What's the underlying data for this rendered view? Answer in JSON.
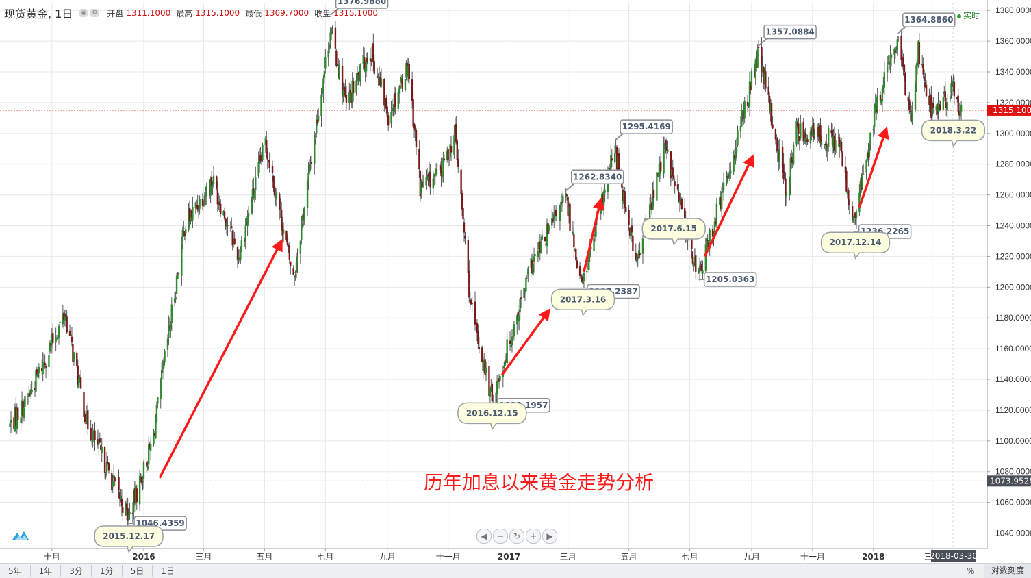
{
  "header": {
    "symbol": "现货黄金, 1日",
    "open_label": "开盘",
    "open_value": "1311.1000",
    "high_label": "最高",
    "high_value": "1315.1000",
    "low_label": "最低",
    "low_value": "1309.7000",
    "close_label": "收盘",
    "close_value": "1315.1000",
    "realtime_label": "实时"
  },
  "timeframes": [
    "5年",
    "1年",
    "3分",
    "1分",
    "5日",
    "1日"
  ],
  "percent_label": "%",
  "log_scale_label": "对数刻度",
  "nav_buttons": [
    "◀",
    "−",
    "↻",
    "+",
    "▶"
  ],
  "colors": {
    "up": "#2e8b2e",
    "down": "#7a1a1a",
    "wick": "#555555",
    "arrow": "#ff1a1a",
    "current_price": "#e01010",
    "title_text": "#ff1a1a",
    "callout_fill": "#fdfde0"
  },
  "chart_data": {
    "type": "candlestick",
    "title": "历年加息以来黄金走势分析",
    "ylim": [
      1030,
      1385
    ],
    "yticks": [
      1040,
      1060,
      1080,
      1100,
      1120,
      1140,
      1160,
      1180,
      1200,
      1220,
      1240,
      1260,
      1280,
      1300,
      1320,
      1340,
      1360,
      1380
    ],
    "ytick_format": "0000",
    "current_price": {
      "value": 1315.1,
      "label": "1315.1000"
    },
    "reference_price": {
      "value": 1073.9528,
      "label": "1073.9528"
    },
    "x_labels": [
      {
        "label": "十月",
        "date": "2015-10-01"
      },
      {
        "label": "2016",
        "date": "2016-01-01"
      },
      {
        "label": "三月",
        "date": "2016-03-01"
      },
      {
        "label": "五月",
        "date": "2016-05-01"
      },
      {
        "label": "七月",
        "date": "2016-07-01"
      },
      {
        "label": "九月",
        "date": "2016-09-01"
      },
      {
        "label": "十一月",
        "date": "2016-11-01"
      },
      {
        "label": "2017",
        "date": "2017-01-01"
      },
      {
        "label": "三月",
        "date": "2017-03-01"
      },
      {
        "label": "五月",
        "date": "2017-05-01"
      },
      {
        "label": "七月",
        "date": "2017-07-01"
      },
      {
        "label": "九月",
        "date": "2017-09-01"
      },
      {
        "label": "十一月",
        "date": "2017-11-01"
      },
      {
        "label": "2018",
        "date": "2018-01-01"
      },
      {
        "label": "三月",
        "date": "2018-03-01"
      }
    ],
    "cursor_date_label": "2018-03-30",
    "anchors": [
      {
        "date": "2015-08-20",
        "price": 1110
      },
      {
        "date": "2015-09-05",
        "price": 1125
      },
      {
        "date": "2015-10-14",
        "price": 1183
      },
      {
        "date": "2015-11-05",
        "price": 1112
      },
      {
        "date": "2015-12-17",
        "price": 1050
      },
      {
        "date": "2016-01-10",
        "price": 1100
      },
      {
        "date": "2016-02-11",
        "price": 1240
      },
      {
        "date": "2016-03-10",
        "price": 1270
      },
      {
        "date": "2016-04-05",
        "price": 1220
      },
      {
        "date": "2016-05-02",
        "price": 1295
      },
      {
        "date": "2016-05-30",
        "price": 1205
      },
      {
        "date": "2016-06-24",
        "price": 1315
      },
      {
        "date": "2016-07-06",
        "price": 1368
      },
      {
        "date": "2016-07-22",
        "price": 1318
      },
      {
        "date": "2016-08-15",
        "price": 1355
      },
      {
        "date": "2016-09-02",
        "price": 1312
      },
      {
        "date": "2016-09-22",
        "price": 1345
      },
      {
        "date": "2016-10-04",
        "price": 1265
      },
      {
        "date": "2016-10-25",
        "price": 1275
      },
      {
        "date": "2016-11-08",
        "price": 1300
      },
      {
        "date": "2016-11-24",
        "price": 1185
      },
      {
        "date": "2016-12-15",
        "price": 1126
      },
      {
        "date": "2017-01-24",
        "price": 1215
      },
      {
        "date": "2017-02-27",
        "price": 1258
      },
      {
        "date": "2017-03-15",
        "price": 1200
      },
      {
        "date": "2017-04-17",
        "price": 1290
      },
      {
        "date": "2017-05-09",
        "price": 1215
      },
      {
        "date": "2017-06-06",
        "price": 1292
      },
      {
        "date": "2017-07-10",
        "price": 1207
      },
      {
        "date": "2017-08-08",
        "price": 1272
      },
      {
        "date": "2017-09-08",
        "price": 1352
      },
      {
        "date": "2017-10-06",
        "price": 1262
      },
      {
        "date": "2017-10-16",
        "price": 1302
      },
      {
        "date": "2017-11-27",
        "price": 1295
      },
      {
        "date": "2017-12-12",
        "price": 1240
      },
      {
        "date": "2018-01-05",
        "price": 1320
      },
      {
        "date": "2018-01-25",
        "price": 1360
      },
      {
        "date": "2018-02-08",
        "price": 1310
      },
      {
        "date": "2018-02-15",
        "price": 1355
      },
      {
        "date": "2018-03-01",
        "price": 1313
      },
      {
        "date": "2018-03-22",
        "price": 1328
      },
      {
        "date": "2018-03-30",
        "price": 1315
      }
    ],
    "annotations": [
      {
        "kind": "price",
        "text": "1376.9880",
        "date": "2016-07-06",
        "price": 1376.988,
        "side": "up"
      },
      {
        "kind": "price",
        "text": "1046.4359",
        "date": "2015-12-17",
        "price": 1046.4359,
        "side": "down"
      },
      {
        "kind": "price",
        "text": "1123.1957",
        "date": "2016-12-15",
        "price": 1123.1957,
        "side": "down"
      },
      {
        "kind": "price",
        "text": "1262.8340",
        "date": "2017-02-27",
        "price": 1262.834,
        "side": "up"
      },
      {
        "kind": "price",
        "text": "1197.2387",
        "date": "2017-03-15",
        "price": 1197.2387,
        "side": "down"
      },
      {
        "kind": "price",
        "text": "1295.4169",
        "date": "2017-04-17",
        "price": 1295.4169,
        "side": "up"
      },
      {
        "kind": "price",
        "text": "1205.0363",
        "date": "2017-07-10",
        "price": 1205.0363,
        "side": "down"
      },
      {
        "kind": "price",
        "text": "1357.0884",
        "date": "2017-09-08",
        "price": 1357.0884,
        "side": "up"
      },
      {
        "kind": "price",
        "text": "1236.2265",
        "date": "2017-12-12",
        "price": 1236.2265,
        "side": "down"
      },
      {
        "kind": "price",
        "text": "1364.8860",
        "date": "2018-01-25",
        "price": 1364.886,
        "side": "up"
      },
      {
        "kind": "date",
        "text": "2015.12.17",
        "date": "2015-12-17",
        "price": 1038
      },
      {
        "kind": "date",
        "text": "2016.12.15",
        "date": "2016-12-15",
        "price": 1118
      },
      {
        "kind": "date",
        "text": "2017.3.16",
        "date": "2017-03-16",
        "price": 1192
      },
      {
        "kind": "date",
        "text": "2017.6.15",
        "date": "2017-06-15",
        "price": 1238
      },
      {
        "kind": "date",
        "text": "2017.12.14",
        "date": "2017-12-14",
        "price": 1229
      },
      {
        "kind": "date",
        "text": "2018.3.22",
        "date": "2018-03-22",
        "price": 1302
      }
    ],
    "arrows": [
      {
        "from": {
          "date": "2016-01-17",
          "price": 1076
        },
        "to": {
          "date": "2016-05-18",
          "price": 1230
        }
      },
      {
        "from": {
          "date": "2016-12-25",
          "price": 1143
        },
        "to": {
          "date": "2017-02-10",
          "price": 1185
        }
      },
      {
        "from": {
          "date": "2017-03-17",
          "price": 1210
        },
        "to": {
          "date": "2017-04-03",
          "price": 1257
        }
      },
      {
        "from": {
          "date": "2017-07-16",
          "price": 1220
        },
        "to": {
          "date": "2017-09-02",
          "price": 1285
        }
      },
      {
        "from": {
          "date": "2017-12-18",
          "price": 1252
        },
        "to": {
          "date": "2018-01-14",
          "price": 1303
        }
      }
    ]
  }
}
